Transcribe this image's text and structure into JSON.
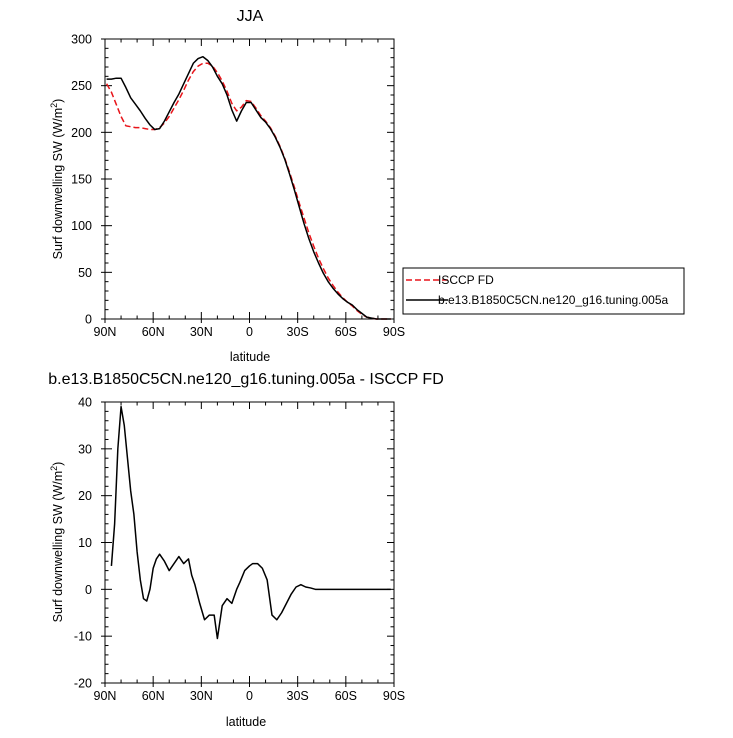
{
  "chart_data": [
    {
      "type": "line",
      "title": "JJA",
      "xlabel": "latitude",
      "ylabel": "Surf downwelling SW (W/m²)",
      "ylabel_parts": {
        "main": "Surf downwelling SW (W/m",
        "sup": "2",
        "close": ")"
      },
      "xlim": [
        90,
        -90
      ],
      "ylim": [
        0,
        300
      ],
      "x_ticks": [
        90,
        60,
        30,
        0,
        -30,
        -60,
        -90
      ],
      "x_tick_labels": [
        "90N",
        "60N",
        "30N",
        "0",
        "30S",
        "60S",
        "90S"
      ],
      "y_ticks": [
        0,
        50,
        100,
        150,
        200,
        250,
        300
      ],
      "y_tick_labels": [
        "0",
        "50",
        "100",
        "150",
        "200",
        "250",
        "300"
      ],
      "legend": {
        "placement": "right",
        "entries": [
          "ISCCP FD",
          "b.e13.B1850C5CN.ne120_g16.tuning.005a"
        ]
      },
      "series": [
        {
          "name": "ISCCP FD",
          "color": "#e8141a",
          "dash": "dashed",
          "x": [
            89,
            86,
            83,
            80,
            77,
            74,
            71,
            68,
            65,
            62,
            59,
            56,
            53,
            50,
            47,
            44,
            41,
            38,
            35,
            32,
            29,
            26,
            23,
            20,
            17,
            14,
            11,
            8,
            5,
            2,
            -1,
            -4,
            -7,
            -10,
            -13,
            -16,
            -19,
            -22,
            -25,
            -28,
            -31,
            -34,
            -37,
            -40,
            -43,
            -46,
            -49,
            -52,
            -55,
            -58,
            -61,
            -64,
            -67,
            -70,
            -73,
            -76,
            -79,
            -82,
            -85,
            -88
          ],
          "y": [
            252,
            243,
            230,
            217,
            207,
            206,
            205,
            205,
            204,
            203,
            203,
            205,
            210,
            217,
            226,
            235,
            245,
            256,
            265,
            271,
            274,
            274,
            271,
            264,
            255,
            244,
            231,
            223,
            227,
            234,
            233,
            226,
            218,
            212,
            205,
            196,
            185,
            172,
            157,
            141,
            124,
            108,
            92,
            78,
            65,
            54,
            44,
            36,
            29,
            23,
            18,
            14,
            9,
            5,
            2,
            1,
            0,
            0,
            0,
            0
          ]
        },
        {
          "name": "b.e13.B1850C5CN.ne120_g16.tuning.005a",
          "color": "#000000",
          "dash": "solid",
          "x": [
            89,
            86,
            83,
            80,
            77,
            74,
            71,
            68,
            65,
            62,
            59,
            56,
            53,
            50,
            47,
            44,
            41,
            38,
            35,
            32,
            29,
            26,
            23,
            20,
            17,
            14,
            11,
            8,
            5,
            2,
            -1,
            -4,
            -7,
            -10,
            -13,
            -16,
            -19,
            -22,
            -25,
            -28,
            -31,
            -34,
            -37,
            -40,
            -43,
            -46,
            -49,
            -52,
            -55,
            -58,
            -61,
            -64,
            -67,
            -70,
            -73,
            -76,
            -79,
            -82,
            -85,
            -88
          ],
          "y": [
            257,
            257,
            258,
            258,
            248,
            237,
            230,
            223,
            215,
            208,
            203,
            204,
            212,
            222,
            232,
            241,
            252,
            263,
            274,
            279,
            281,
            277,
            270,
            260,
            252,
            240,
            224,
            212,
            223,
            232,
            232,
            224,
            216,
            211,
            204,
            195,
            184,
            171,
            155,
            138,
            120,
            102,
            86,
            72,
            60,
            49,
            40,
            33,
            27,
            22,
            18,
            15,
            10,
            6,
            2,
            1,
            0,
            0,
            0,
            0
          ]
        }
      ]
    },
    {
      "type": "line",
      "title": "b.e13.B1850C5CN.ne120_g16.tuning.005a - ISCCP FD",
      "xlabel": "latitude",
      "ylabel": "Surf downwelling SW (W/m²)",
      "ylabel_parts": {
        "main": "Surf downwelling SW (W/m",
        "sup": "2",
        "close": ")"
      },
      "xlim": [
        90,
        -90
      ],
      "ylim": [
        -20,
        40
      ],
      "x_ticks": [
        90,
        60,
        30,
        0,
        -30,
        -60,
        -90
      ],
      "x_tick_labels": [
        "90N",
        "60N",
        "30N",
        "0",
        "30S",
        "60S",
        "90S"
      ],
      "y_ticks": [
        -20,
        -10,
        0,
        10,
        20,
        30,
        40
      ],
      "y_tick_labels": [
        "-20",
        "-10",
        "0",
        "10",
        "20",
        "30",
        "40"
      ],
      "series": [
        {
          "color": "#000000",
          "dash": "solid",
          "x": [
            86,
            84,
            82,
            80,
            78,
            76,
            74,
            72,
            70,
            68,
            66,
            64,
            62,
            60,
            58,
            56,
            53,
            50,
            47,
            44,
            41,
            38,
            36,
            34,
            31,
            28,
            25,
            22,
            20,
            17,
            14,
            11,
            8,
            6,
            3,
            0,
            -2,
            -5,
            -8,
            -11,
            -14,
            -17,
            -20,
            -23,
            -26,
            -29,
            -32,
            -35,
            -38,
            -41,
            -44,
            -47,
            -50,
            -53,
            -56,
            -59,
            -62,
            -65,
            -68,
            -71,
            -74,
            -77,
            -80,
            -83,
            -86,
            -88
          ],
          "y": [
            5,
            14,
            30,
            39,
            35,
            28,
            21,
            16,
            8,
            2,
            -2,
            -2.5,
            0,
            4.5,
            6.5,
            7.5,
            6,
            4,
            5.5,
            7,
            5.5,
            6.5,
            3,
            1,
            -3,
            -6.5,
            -5.5,
            -5.5,
            -10.5,
            -3.5,
            -2,
            -3,
            0,
            1.5,
            4,
            5,
            5.5,
            5.5,
            4.5,
            2,
            -5.5,
            -6.5,
            -5,
            -3,
            -1,
            0.5,
            1,
            0.5,
            0.3,
            0,
            0,
            0,
            0,
            0,
            0,
            0,
            0,
            0,
            0,
            0,
            0,
            0,
            0,
            0,
            0,
            0
          ]
        }
      ]
    }
  ]
}
